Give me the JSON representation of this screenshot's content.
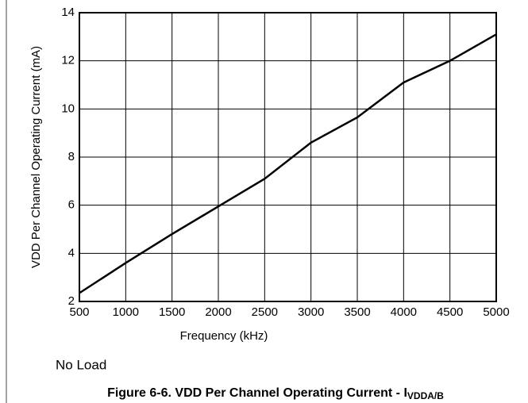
{
  "chart_data": {
    "type": "line",
    "title": "Figure 6-6. VDD Per Channel Operating Current - I",
    "title_subscript": "VDDA/B",
    "note": "No Load",
    "x_label": "Frequency (kHz)",
    "y_label": "VDD Per Channel Operating Current (mA)",
    "x": [
      500,
      1000,
      1500,
      2000,
      2500,
      3000,
      3500,
      4000,
      4500,
      5000
    ],
    "series": [
      {
        "color": "#000000",
        "values": [
          2.35,
          3.6,
          4.8,
          5.95,
          7.1,
          8.6,
          9.65,
          11.1,
          12.0,
          13.1
        ]
      }
    ],
    "xlim": [
      500,
      5000
    ],
    "xticks": [
      500,
      1000,
      1500,
      2000,
      2500,
      3000,
      3500,
      4000,
      4500,
      5000
    ],
    "ylim": [
      2,
      14
    ],
    "yticks": [
      2,
      4,
      6,
      8,
      10,
      12,
      14
    ],
    "grid": true
  }
}
